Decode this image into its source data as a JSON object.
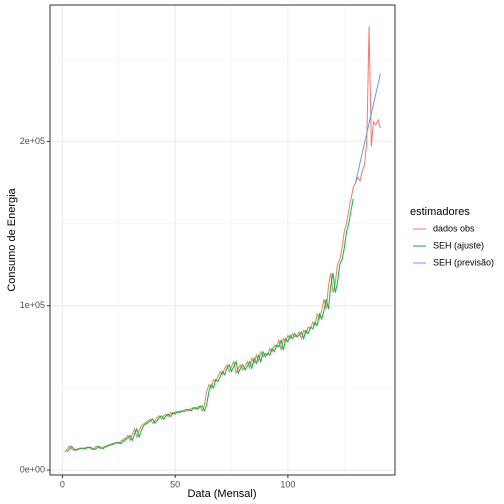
{
  "chart_data": {
    "type": "line",
    "xlabel": "Data (Mensal)",
    "ylabel": "Consumo de Energia",
    "legend_title": "estimadores",
    "legend": "right",
    "grid": true,
    "x": [
      1,
      2,
      3,
      4,
      5,
      6,
      7,
      8,
      9,
      10,
      11,
      12,
      13,
      14,
      15,
      16,
      17,
      18,
      19,
      20,
      21,
      22,
      23,
      24,
      25,
      26,
      27,
      28,
      29,
      30,
      31,
      32,
      33,
      34,
      35,
      36,
      37,
      38,
      39,
      40,
      41,
      42,
      43,
      44,
      45,
      46,
      47,
      48,
      49,
      50,
      51,
      52,
      53,
      54,
      55,
      56,
      57,
      58,
      59,
      60,
      61,
      62,
      63,
      64,
      65,
      66,
      67,
      68,
      69,
      70,
      71,
      72,
      73,
      74,
      75,
      76,
      77,
      78,
      79,
      80,
      81,
      82,
      83,
      84,
      85,
      86,
      87,
      88,
      89,
      90,
      91,
      92,
      93,
      94,
      95,
      96,
      97,
      98,
      99,
      100,
      101,
      102,
      103,
      104,
      105,
      106,
      107,
      108,
      109,
      110,
      111,
      112,
      113,
      114,
      115,
      116,
      117,
      118,
      119,
      120,
      121,
      122,
      123,
      124,
      125,
      126,
      127,
      128,
      129,
      130,
      131,
      132,
      133,
      134,
      135,
      136,
      137,
      138,
      139,
      140,
      141
    ],
    "xlim": [
      -5.5,
      147.5
    ],
    "xticks": [
      0,
      50,
      100
    ],
    "ylim": [
      -3000,
      283000
    ],
    "yticks": [
      {
        "value": 0,
        "label": "0e+00"
      },
      {
        "value": 100000,
        "label": "1e+05"
      },
      {
        "value": 200000,
        "label": "2e+05"
      }
    ],
    "series": [
      {
        "name": "dados obs",
        "color": "#F8766D",
        "values": [
          11000,
          12500,
          14500,
          13000,
          12000,
          12500,
          13000,
          13500,
          12800,
          13500,
          14000,
          13500,
          12500,
          13000,
          14500,
          13800,
          13000,
          14000,
          14500,
          15000,
          15500,
          16000,
          16500,
          17000,
          16000,
          17500,
          18500,
          19500,
          21000,
          18000,
          22000,
          25000,
          20000,
          24000,
          27000,
          28000,
          29000,
          30000,
          31000,
          28500,
          30000,
          32000,
          33000,
          31000,
          33000,
          34000,
          32500,
          35000,
          34000,
          35500,
          35000,
          36000,
          35500,
          36500,
          37000,
          36000,
          37500,
          38000,
          37000,
          38500,
          39000,
          36000,
          40000,
          48000,
          52000,
          50000,
          55000,
          54000,
          57000,
          60000,
          58000,
          62000,
          64000,
          60000,
          63000,
          66000,
          59000,
          62000,
          64000,
          61000,
          63000,
          66000,
          62000,
          68000,
          65000,
          70000,
          66000,
          72000,
          69000,
          71000,
          70000,
          74000,
          72000,
          76000,
          75000,
          79000,
          73000,
          80000,
          78000,
          82000,
          80000,
          83000,
          81000,
          82000,
          84000,
          80000,
          85000,
          83000,
          87000,
          86000,
          90000,
          88000,
          95000,
          92000,
          97000,
          104000,
          98000,
          112000,
          120000,
          108000,
          114000,
          125000,
          128000,
          135000,
          145000,
          150000,
          158000,
          165000,
          172000,
          175000,
          178000,
          176000,
          182000,
          186000,
          200000,
          270000,
          197000,
          212000,
          210000,
          213000,
          208000
        ]
      },
      {
        "name": "SEH (ajuste)",
        "color": "#00BA38",
        "values": [
          null,
          11000,
          12500,
          14500,
          13000,
          12000,
          12500,
          13000,
          13500,
          12800,
          13500,
          14000,
          13500,
          12500,
          13000,
          14500,
          13800,
          13000,
          14000,
          14500,
          15000,
          15500,
          16000,
          16500,
          17000,
          16000,
          17500,
          18500,
          19500,
          21000,
          18000,
          22000,
          25000,
          20000,
          24000,
          27000,
          28000,
          29000,
          30000,
          31000,
          28500,
          30000,
          32000,
          33000,
          31000,
          33000,
          34000,
          32500,
          35000,
          34000,
          35500,
          35000,
          36000,
          35500,
          36500,
          37000,
          36000,
          37500,
          38000,
          37000,
          38500,
          39000,
          36000,
          40000,
          48000,
          52000,
          50000,
          55000,
          54000,
          57000,
          60000,
          58000,
          62000,
          64000,
          60000,
          63000,
          66000,
          59000,
          62000,
          64000,
          61000,
          63000,
          66000,
          62000,
          68000,
          65000,
          70000,
          66000,
          72000,
          69000,
          71000,
          70000,
          74000,
          72000,
          76000,
          75000,
          79000,
          73000,
          80000,
          78000,
          82000,
          80000,
          83000,
          81000,
          82000,
          84000,
          80000,
          85000,
          83000,
          87000,
          86000,
          90000,
          88000,
          95000,
          92000,
          97000,
          104000,
          98000,
          112000,
          120000,
          108000,
          114000,
          125000,
          128000,
          135000,
          145000,
          150000,
          158000,
          165000,
          null,
          null,
          null,
          null,
          null,
          null,
          null,
          null,
          null,
          null,
          null,
          null
        ]
      },
      {
        "name": "SEH (previsão)",
        "color": "#619CFF",
        "values": [
          null,
          null,
          null,
          null,
          null,
          null,
          null,
          null,
          null,
          null,
          null,
          null,
          null,
          null,
          null,
          null,
          null,
          null,
          null,
          null,
          null,
          null,
          null,
          null,
          null,
          null,
          null,
          null,
          null,
          null,
          null,
          null,
          null,
          null,
          null,
          null,
          null,
          null,
          null,
          null,
          null,
          null,
          null,
          null,
          null,
          null,
          null,
          null,
          null,
          null,
          null,
          null,
          null,
          null,
          null,
          null,
          null,
          null,
          null,
          null,
          null,
          null,
          null,
          null,
          null,
          null,
          null,
          null,
          null,
          null,
          null,
          null,
          null,
          null,
          null,
          null,
          null,
          null,
          null,
          null,
          null,
          null,
          null,
          null,
          null,
          null,
          null,
          null,
          null,
          null,
          null,
          null,
          null,
          null,
          null,
          null,
          null,
          null,
          null,
          null,
          null,
          null,
          null,
          null,
          null,
          null,
          null,
          null,
          null,
          null,
          null,
          null,
          null,
          null,
          null,
          null,
          null,
          null,
          null,
          null,
          null,
          null,
          null,
          null,
          null,
          null,
          null,
          null,
          null,
          175000,
          181000,
          187000,
          193000,
          199000,
          205000,
          211000,
          217000,
          223000,
          229000,
          235000,
          241000
        ]
      }
    ]
  }
}
